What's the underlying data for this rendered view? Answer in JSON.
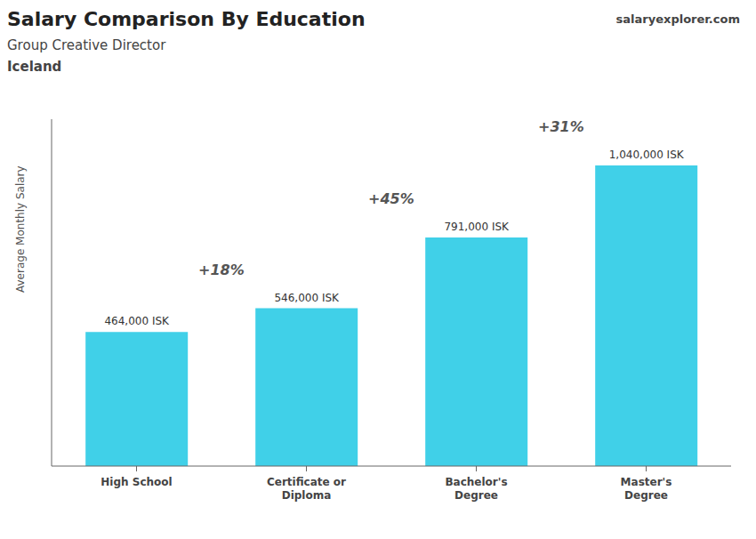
{
  "chart_data": {
    "type": "bar",
    "title": "Salary Comparison By Education",
    "subtitle": "Group Creative Director",
    "annotations": [
      "Iceland",
      "salaryexplorer.com"
    ],
    "ylabel": "Average Monthly Salary",
    "categories": [
      "High School",
      "Certificate or\nDiploma",
      "Bachelor's\nDegree",
      "Master's\nDegree"
    ],
    "values": [
      464000,
      546000,
      791000,
      1040000
    ],
    "value_labels": [
      "464,000 ISK",
      "546,000 ISK",
      "791,000 ISK",
      "1,040,000 ISK"
    ],
    "change_labels": [
      "+18%",
      "+45%",
      "+31%"
    ],
    "color": "#40d0e8",
    "ylim": [
      0,
      1200000
    ],
    "grid": false,
    "data_labels": true,
    "tick_labels": false
  }
}
